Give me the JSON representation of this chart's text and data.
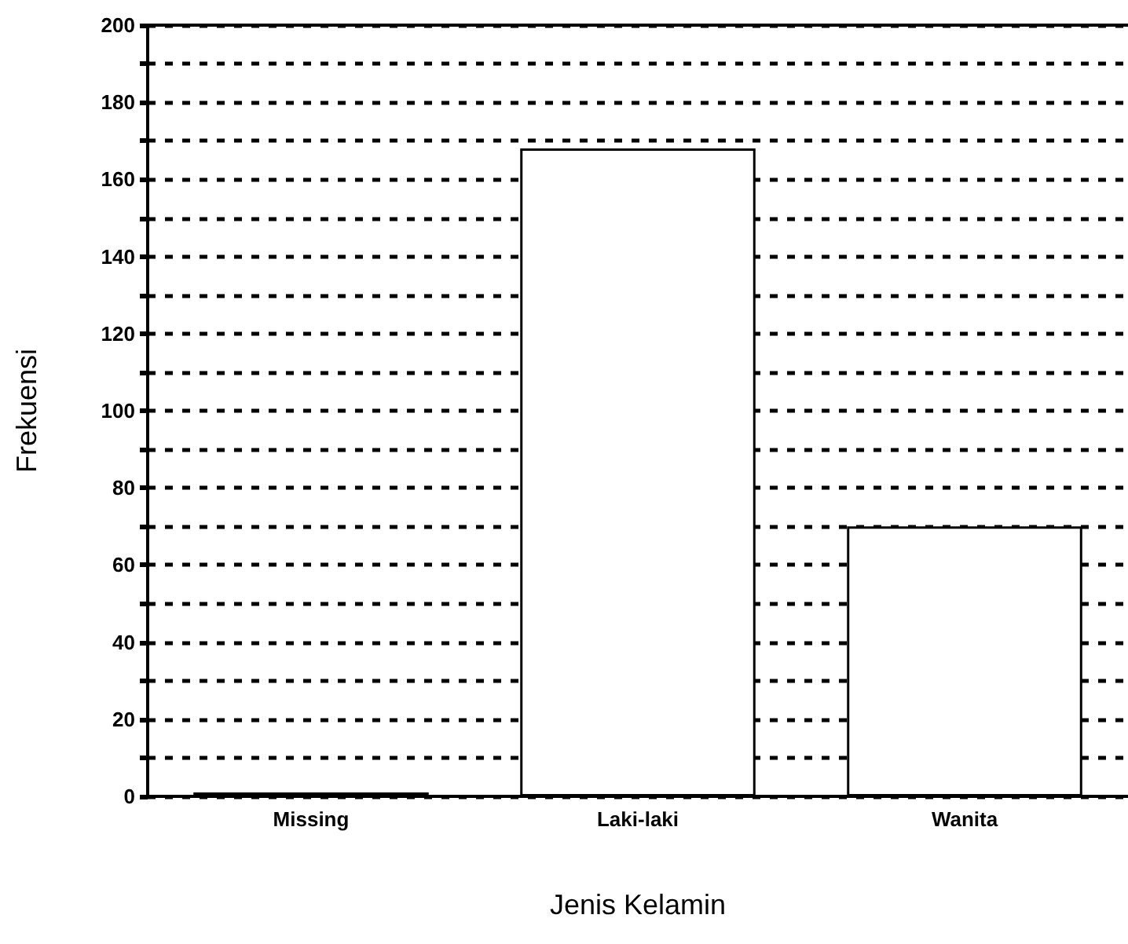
{
  "chart_data": {
    "type": "bar",
    "xlabel": "Jenis Kelamin",
    "ylabel": "Frekuensi",
    "categories": [
      "Missing",
      "Laki-laki",
      "Wanita"
    ],
    "values": [
      1,
      168,
      70
    ],
    "color": "#ffffff",
    "ylim": [
      0,
      200
    ],
    "yticks": [
      0,
      {
        "value": 10,
        "label": null
      },
      20,
      {
        "value": 30,
        "label": null
      },
      40,
      {
        "value": 50,
        "label": null
      },
      60,
      {
        "value": 70,
        "label": null
      },
      80,
      {
        "value": 90,
        "label": null
      },
      100,
      {
        "value": 110,
        "label": null
      },
      120,
      {
        "value": 130,
        "label": null
      },
      140,
      {
        "value": 150,
        "label": null
      },
      160,
      {
        "value": 170,
        "label": null
      },
      180,
      {
        "value": 190,
        "label": null
      },
      200
    ],
    "grid": "y"
  }
}
